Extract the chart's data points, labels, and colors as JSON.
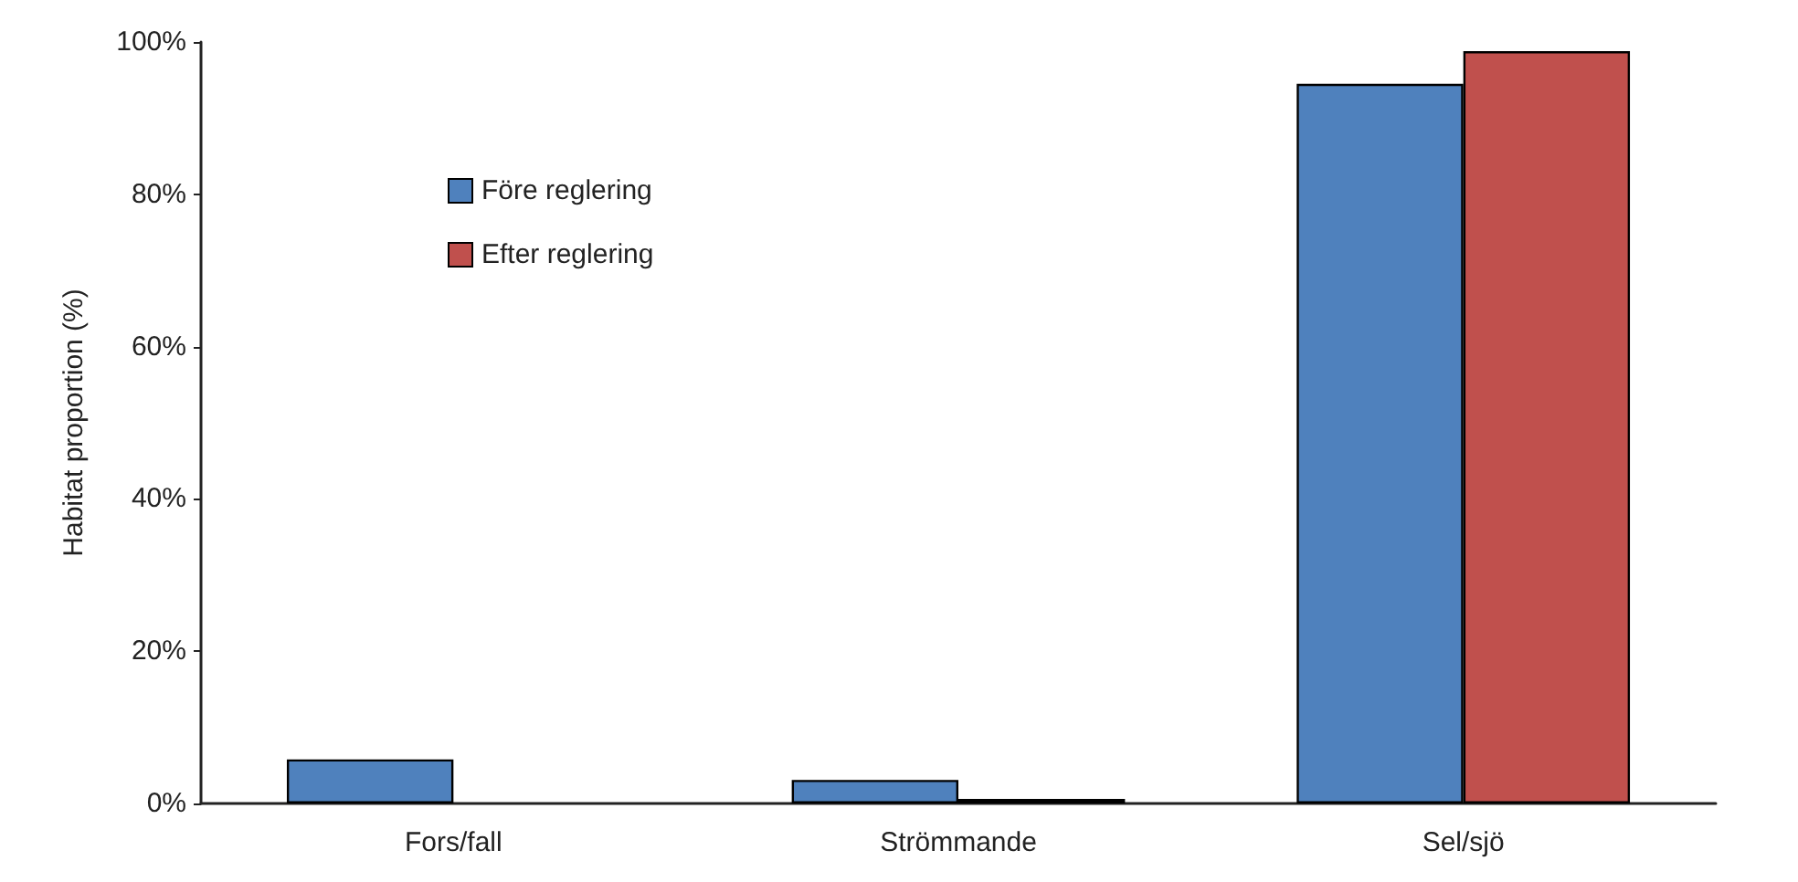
{
  "chart_data": {
    "type": "bar",
    "ylabel": "Habitat proportion (%)",
    "categories": [
      "Fors/fall",
      "Strömmande",
      "Sel/sjö"
    ],
    "series": [
      {
        "name": "Före reglering",
        "color": "#4f81bd",
        "values": [
          5.8,
          3.1,
          94.5
        ]
      },
      {
        "name": "Efter reglering",
        "color": "#c0504d",
        "values": [
          null,
          0.6,
          98.8
        ]
      }
    ],
    "ylim": [
      0,
      100
    ],
    "yticks": [
      {
        "value": 0,
        "label": "0%"
      },
      {
        "value": 20,
        "label": "20%"
      },
      {
        "value": 40,
        "label": "40%"
      },
      {
        "value": 60,
        "label": "60%"
      },
      {
        "value": 80,
        "label": "80%"
      },
      {
        "value": 100,
        "label": "100%"
      }
    ],
    "grid": false,
    "legend": "top left"
  }
}
